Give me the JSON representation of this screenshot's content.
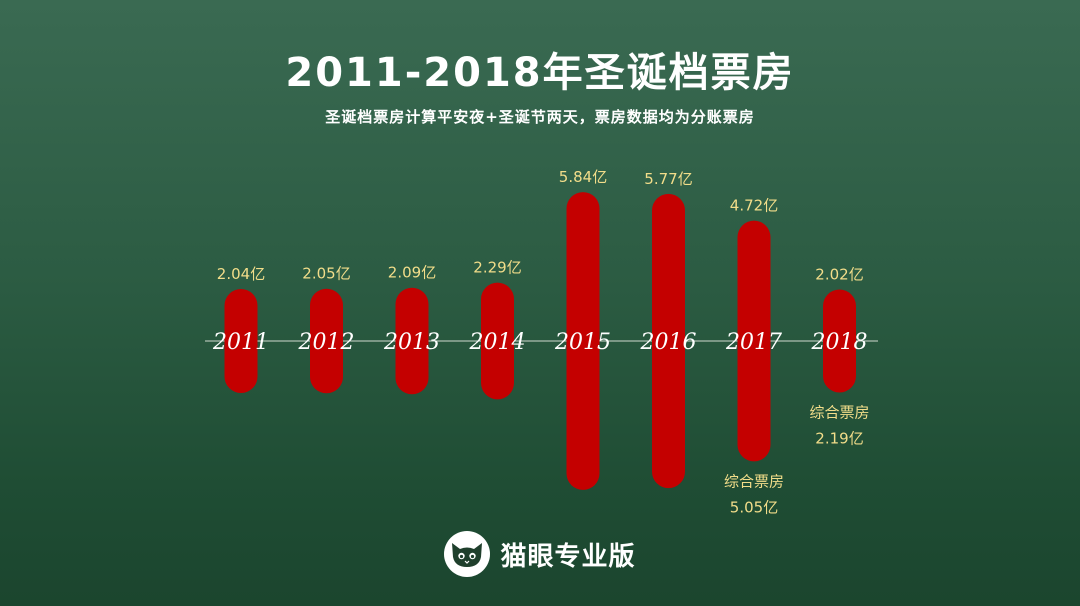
{
  "title": "2011-2018年圣诞档票房",
  "subtitle": "圣诞档票房计算平安夜+圣诞节两天，票房数据均为分账票房",
  "brand": {
    "name": "猫眼专业版",
    "logo_icon": "cat-face-icon"
  },
  "colors": {
    "bar": "#c40000",
    "value_text": "#f2dd8a",
    "axis": "#cfd8cf"
  },
  "chart_data": {
    "type": "bar",
    "title": "2011-2018年圣诞档票房",
    "subtitle": "圣诞档票房计算平安夜+圣诞节两天，票房数据均为分账票房",
    "categories": [
      "2011",
      "2012",
      "2013",
      "2014",
      "2015",
      "2016",
      "2017",
      "2018"
    ],
    "values": [
      2.04,
      2.05,
      2.09,
      2.29,
      5.84,
      5.77,
      4.72,
      2.02
    ],
    "value_labels": [
      "2.04亿",
      "2.05亿",
      "2.09亿",
      "2.29亿",
      "5.84亿",
      "5.77亿",
      "4.72亿",
      "2.02亿"
    ],
    "unit": "亿",
    "annotations": [
      {
        "category": "2017",
        "label": "综合票房",
        "value": 5.05,
        "value_label": "5.05亿"
      },
      {
        "category": "2018",
        "label": "综合票房",
        "value": 2.19,
        "value_label": "2.19亿"
      }
    ],
    "grid": false,
    "legend": "none"
  }
}
